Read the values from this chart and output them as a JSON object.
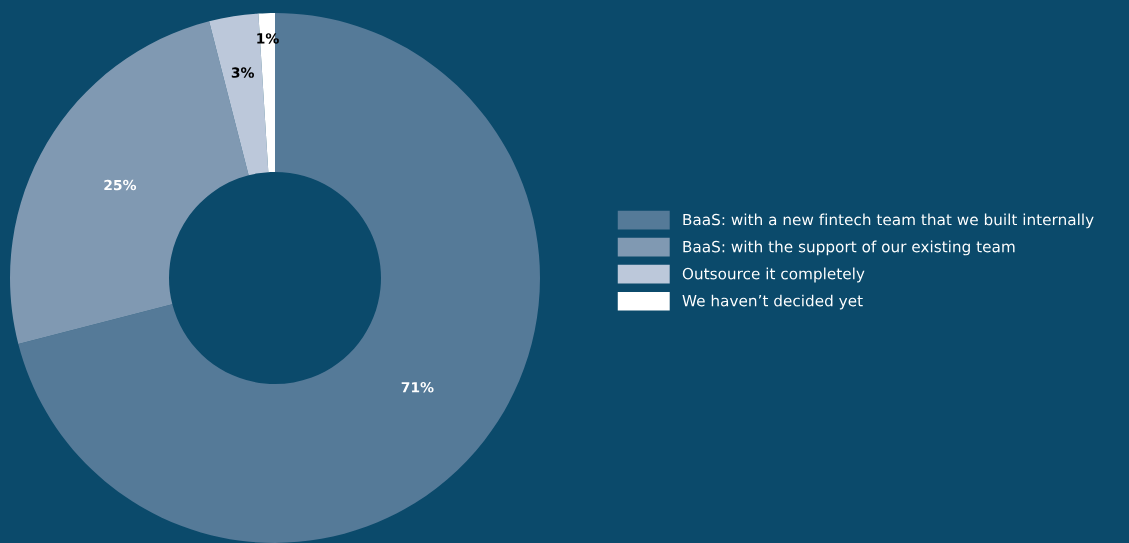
{
  "chart_data": {
    "type": "donut",
    "categories": [
      "BaaS: with a new fintech team that we built internally",
      "BaaS: with the support of our existing team",
      "Outsource it completely",
      "We haven’t decided yet"
    ],
    "values": [
      71,
      25,
      3,
      1
    ],
    "colors": [
      "#557a98",
      "#8099b2",
      "#bcc8da",
      "#ffffff"
    ],
    "value_labels": [
      "71%",
      "25%",
      "3%",
      "1%"
    ],
    "legend": "right"
  }
}
